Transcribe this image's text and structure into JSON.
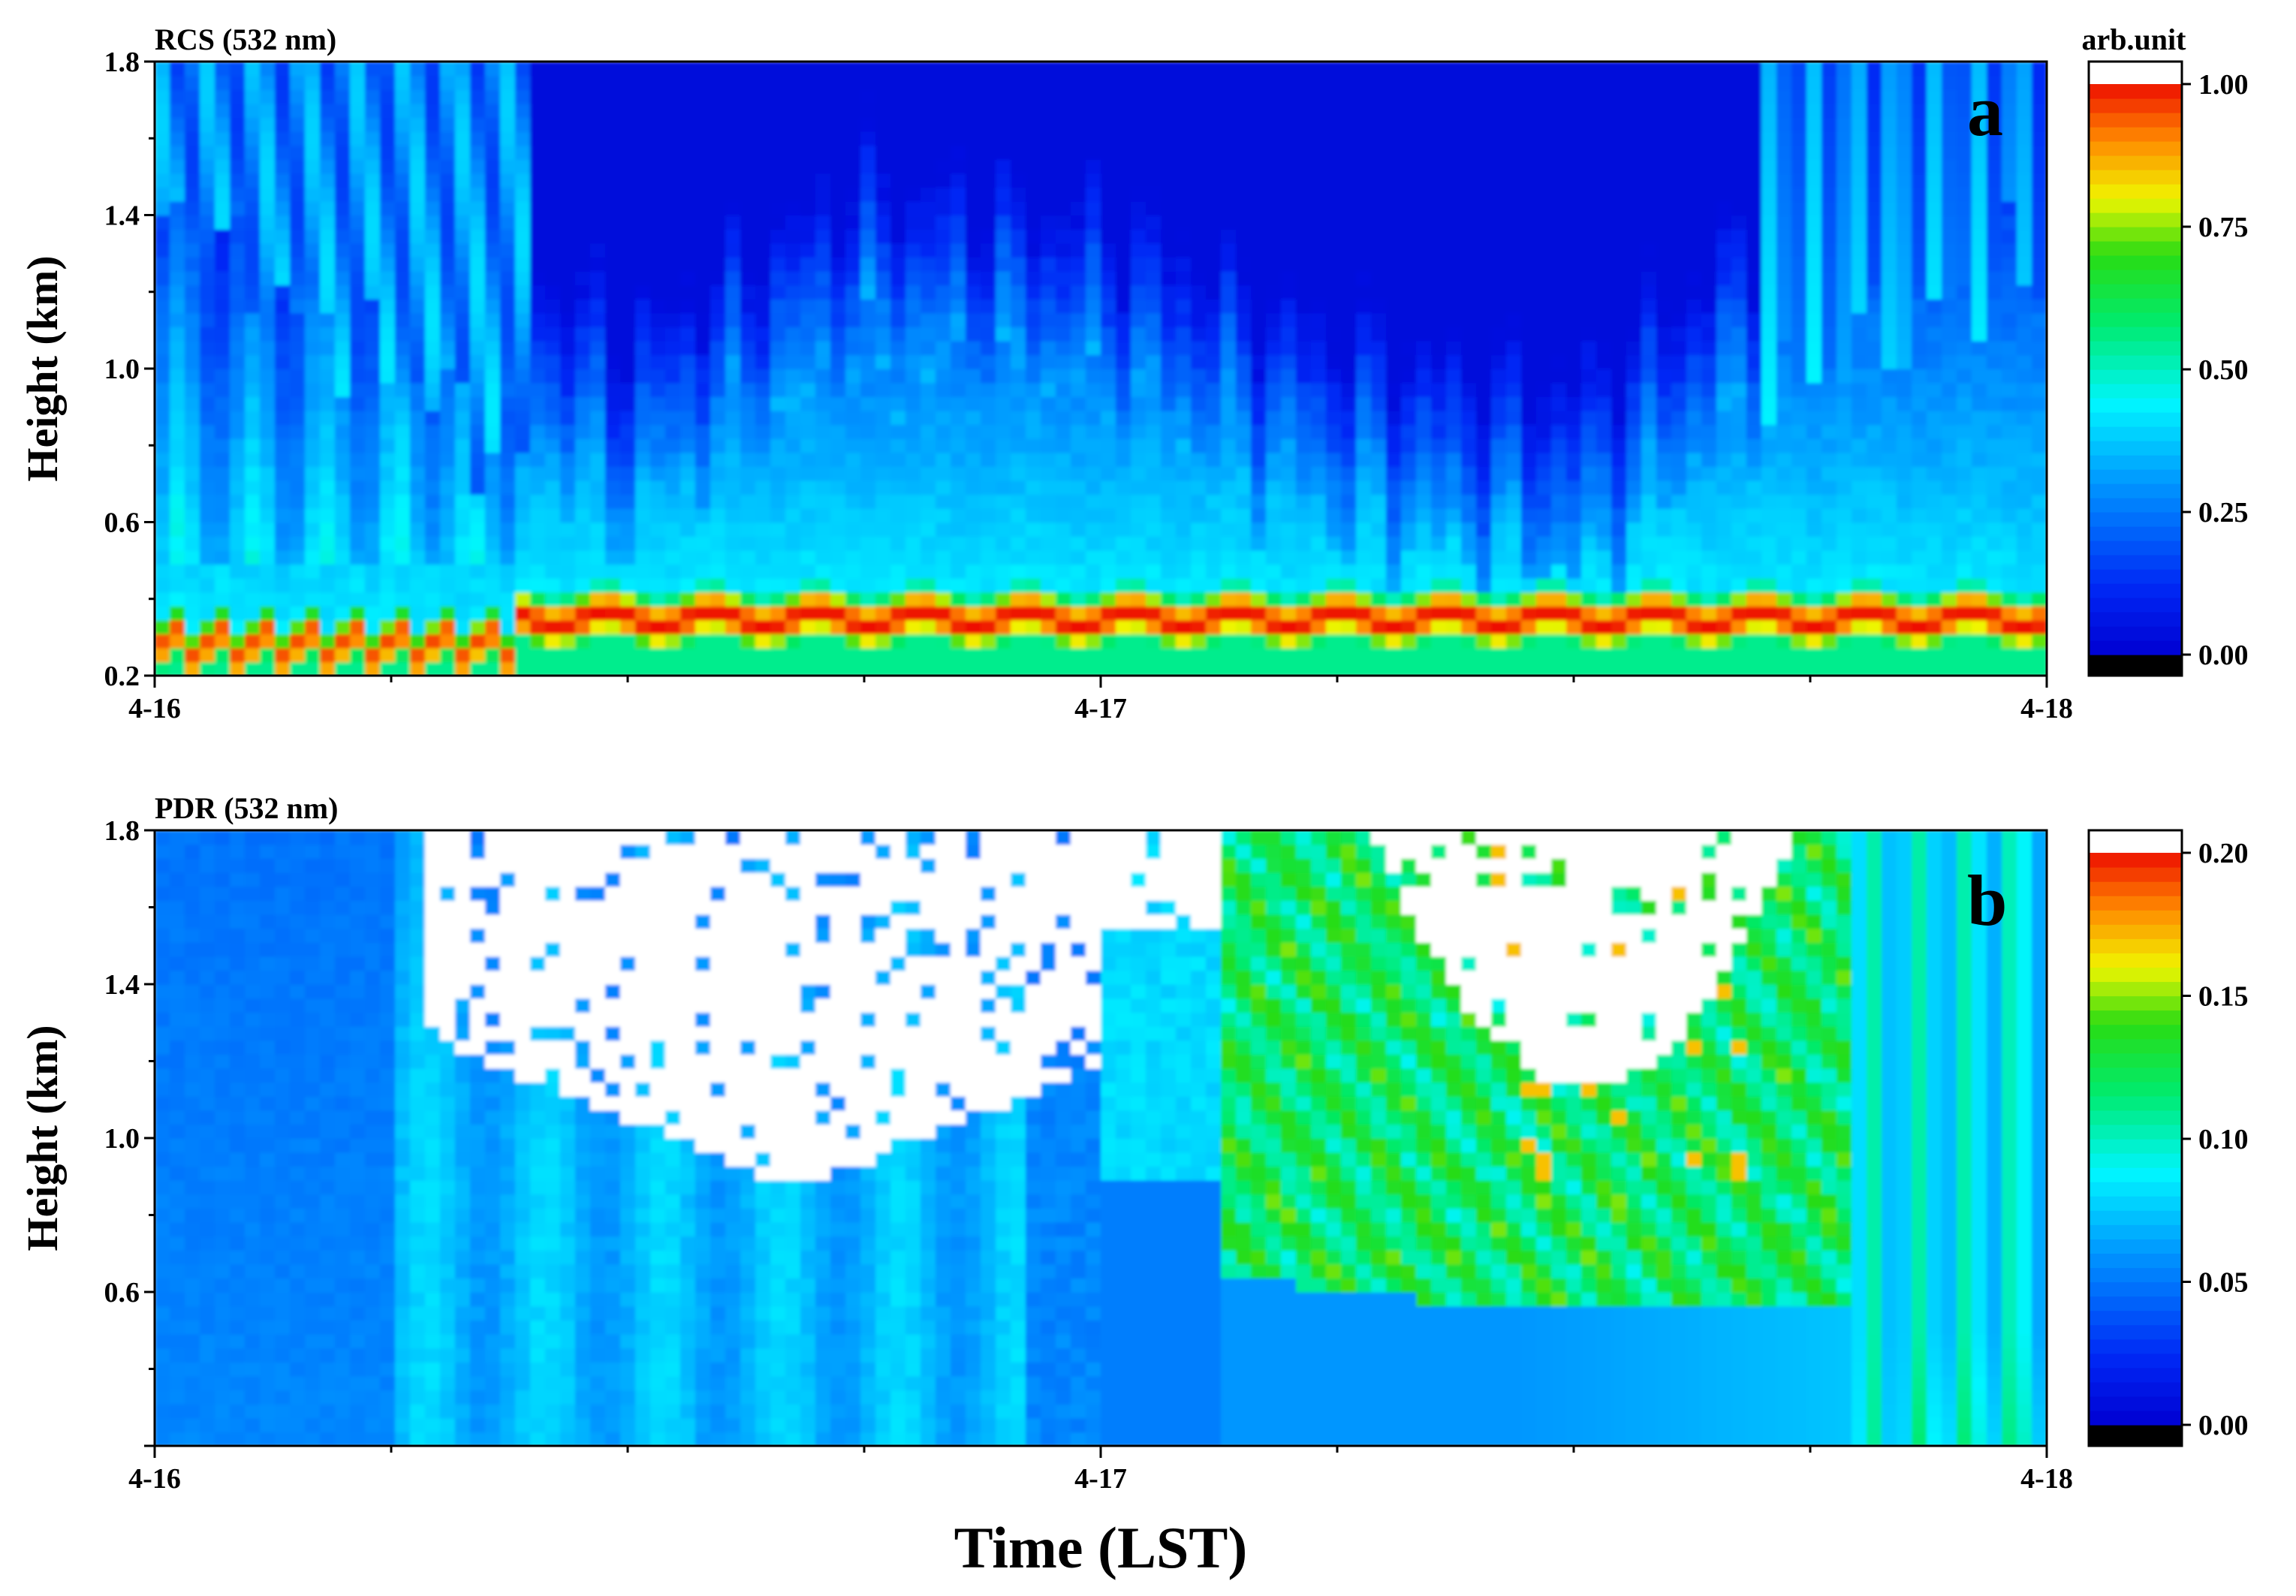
{
  "chart_data": [
    {
      "type": "heatmap",
      "title": "RCS (532 nm)",
      "panel_letter": "a",
      "xlabel": "",
      "ylabel": "Height (km)",
      "x_tick_labels": [
        "4-16",
        "4-17",
        "4-18"
      ],
      "x_range_days": [
        0,
        2
      ],
      "ylim": [
        0.2,
        1.8
      ],
      "y_ticks": [
        0.2,
        0.6,
        1.0,
        1.4,
        1.8
      ],
      "y_tick_labels": [
        "0.2",
        "0.6",
        "1.0",
        "1.4",
        "1.8"
      ],
      "colorbar": {
        "label": "arb.unit",
        "range": [
          0,
          1
        ],
        "ticks": [
          0,
          0.25,
          0.5,
          0.75,
          1.0
        ],
        "tick_labels": [
          "0.00",
          "0.25",
          "0.50",
          "0.75",
          "1.00"
        ],
        "over_color": "#ffffff",
        "under_color": "#000000",
        "levels": 40
      },
      "features": {
        "aerosol_layer_peak_height_km": 0.35,
        "aerosol_layer_peak_value": 1.0,
        "boundary_layer_top_km": [
          1.4,
          1.0,
          0.6,
          1.0,
          0.9,
          0.6,
          0.45,
          1.0,
          1.3
        ]
      }
    },
    {
      "type": "heatmap",
      "title": "PDR (532 nm)",
      "panel_letter": "b",
      "xlabel": "Time (LST)",
      "ylabel": "Height (km)",
      "x_tick_labels": [
        "4-16",
        "4-17",
        "4-18"
      ],
      "x_range_days": [
        0,
        2
      ],
      "ylim": [
        0.2,
        1.8
      ],
      "y_ticks": [
        0.6,
        1.0,
        1.4,
        1.8
      ],
      "y_tick_labels": [
        "0.6",
        "1.0",
        "1.4",
        "1.8"
      ],
      "colorbar": {
        "label": "",
        "range": [
          0,
          0.2
        ],
        "ticks": [
          0,
          0.05,
          0.1,
          0.15,
          0.2
        ],
        "tick_labels": [
          "0.00",
          "0.05",
          "0.10",
          "0.15",
          "0.20"
        ],
        "over_color": "#ffffff",
        "under_color": "#000000",
        "levels": 40
      },
      "features": {
        "no_data_region_color": "#ffffff",
        "typical_value_low_altitude": 0.07,
        "typical_value_dust_event": 0.12
      }
    }
  ]
}
